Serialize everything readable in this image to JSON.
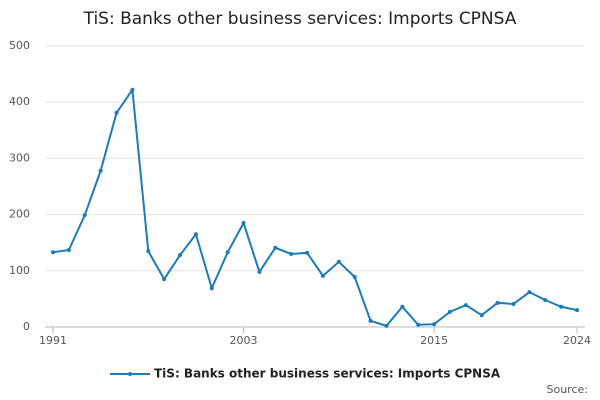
{
  "chart_data": {
    "type": "line",
    "title": "TiS: Banks other business services: Imports CPNSA",
    "x": [
      1991,
      1992,
      1993,
      1994,
      1995,
      1996,
      1997,
      1998,
      1999,
      2000,
      2001,
      2002,
      2003,
      2004,
      2005,
      2006,
      2007,
      2008,
      2009,
      2010,
      2011,
      2012,
      2013,
      2014,
      2015,
      2016,
      2017,
      2018,
      2019,
      2020,
      2021,
      2022,
      2023,
      2024
    ],
    "series": [
      {
        "name": "TiS: Banks other business services: Imports CPNSA",
        "color": "#1d7bb8",
        "values": [
          133,
          137,
          199,
          278,
          381,
          422,
          135,
          85,
          128,
          165,
          69,
          133,
          185,
          98,
          141,
          130,
          132,
          91,
          116,
          89,
          11,
          2,
          36,
          4,
          5,
          27,
          39,
          21,
          43,
          41,
          62,
          48,
          36,
          30
        ]
      }
    ],
    "xlim": [
      1991,
      2024
    ],
    "xticks": [
      1991,
      2003,
      2015,
      2024
    ],
    "ylim": [
      0,
      500
    ],
    "yticks": [
      0,
      100,
      200,
      300,
      400,
      500
    ],
    "grid": true,
    "legend": "bottom",
    "source": "Source:"
  }
}
